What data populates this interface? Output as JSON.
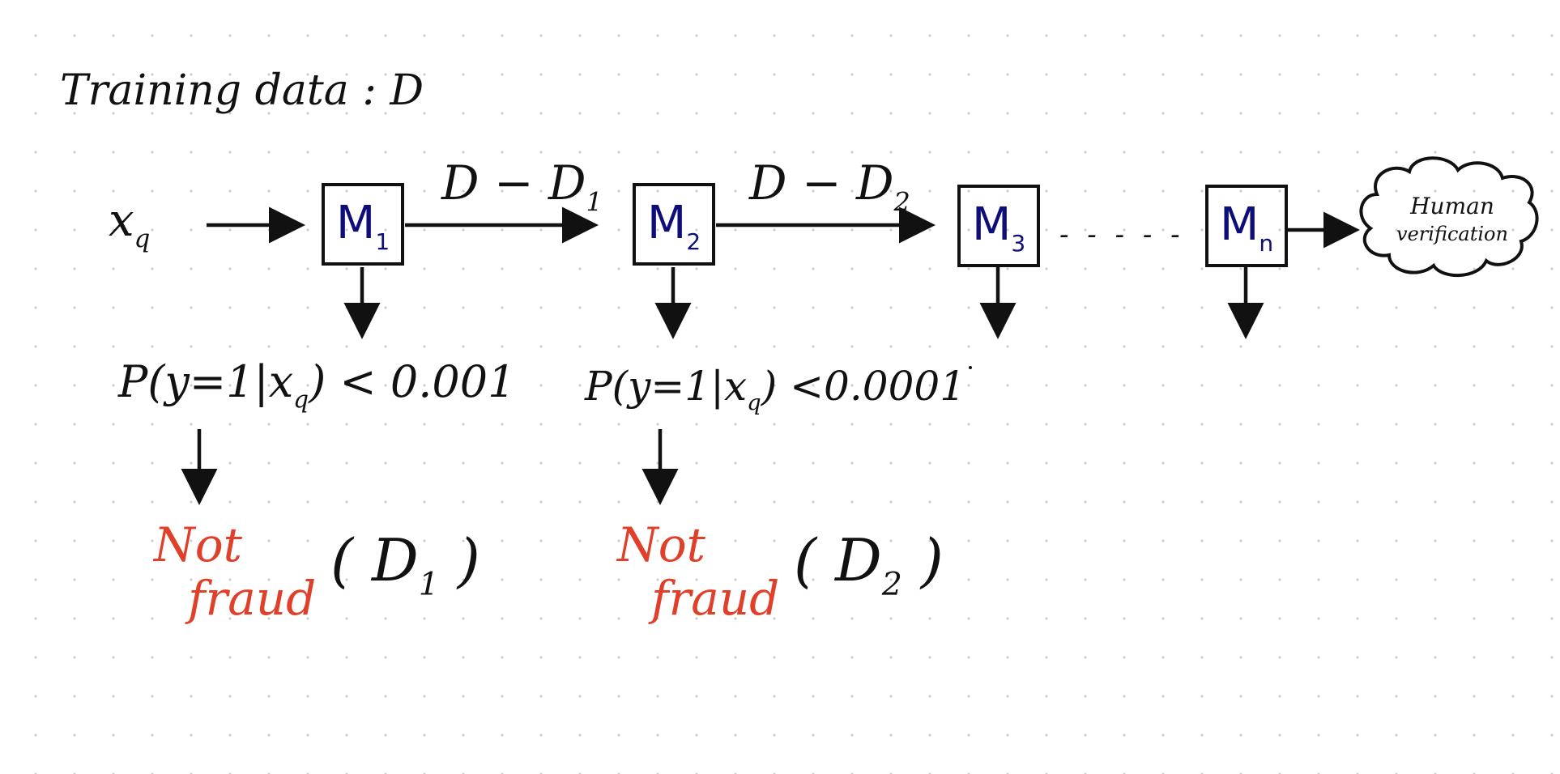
{
  "title": "Training data : D",
  "input_label": "x",
  "input_sub": "q",
  "models": [
    {
      "name": "M",
      "sub": "1"
    },
    {
      "name": "M",
      "sub": "2"
    },
    {
      "name": "M",
      "sub": "3"
    },
    {
      "name": "M",
      "sub": "n"
    }
  ],
  "edge_labels": [
    {
      "a": "D",
      "op": "−",
      "b": "D",
      "sub": "1"
    },
    {
      "a": "D",
      "op": "−",
      "b": "D",
      "sub": "2"
    }
  ],
  "ellipsis": "- - - - -",
  "human_verification": {
    "line1": "Human",
    "line2": "verification"
  },
  "conditions": [
    "P(y=1|x",
    "P(y=1|x"
  ],
  "condition_tails": [
    ") < 0.001",
    ") <0.0001"
  ],
  "outcomes": [
    {
      "line1": "Not",
      "line2": "fraud",
      "set": "D",
      "set_sub": "1"
    },
    {
      "line1": "Not",
      "line2": "fraud",
      "set": "D",
      "set_sub": "2"
    }
  ],
  "colors": {
    "ink": "#111111",
    "model": "#0e0e7a",
    "outcome": "#e0402a",
    "grid_dot": "#c9c9c9"
  }
}
